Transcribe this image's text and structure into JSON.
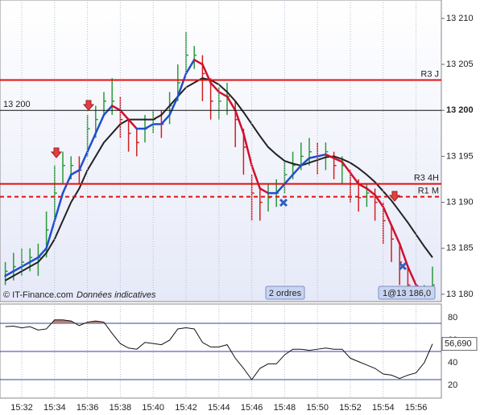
{
  "chart_data": {
    "type": "ohlc",
    "categories": [
      null,
      null,
      "15:32",
      null,
      null,
      null,
      "15:34",
      null,
      null,
      null,
      "15:36",
      null,
      null,
      null,
      "15:38",
      null,
      null,
      null,
      "15:40",
      null,
      null,
      null,
      "15:42",
      null,
      null,
      null,
      "15:44",
      null,
      null,
      null,
      "15:46",
      null,
      null,
      null,
      "15:48",
      null,
      null,
      null,
      "15:50",
      null,
      null,
      null,
      "15:52",
      null,
      null,
      null,
      "15:54",
      null,
      null,
      null,
      "15:56",
      null,
      null
    ],
    "values": [
      13182.5,
      13183,
      13183.5,
      13184,
      13184,
      13187,
      13191,
      13194,
      13194,
      13193.5,
      13198,
      13199,
      13201,
      13201,
      13199,
      13197.5,
      13196.5,
      13198,
      13199,
      13198.5,
      13200.5,
      13203,
      13206,
      13206,
      13204,
      13201,
      13201,
      13201.5,
      13199,
      13196,
      13191,
      13190,
      13190.5,
      13191,
      13193,
      13194,
      13195,
      13195.5,
      13195,
      13195.5,
      13194,
      13194,
      13192,
      13190.5,
      13191,
      13190,
      13188,
      13186,
      13183.5,
      13181,
      13180,
      13180,
      13181
    ],
    "high": [
      13183.5,
      13184.5,
      13185,
      13185,
      13185.5,
      13189,
      13194,
      13195.5,
      13195,
      13195,
      13199.5,
      13200.5,
      13202,
      13203.5,
      13201.5,
      13199,
      13198,
      13199.5,
      13200,
      13200,
      13202,
      13205,
      13208.5,
      13207,
      13206,
      13203.5,
      13202.5,
      13203,
      13201,
      13198,
      13193,
      13191.5,
      13192,
      13192.5,
      13194.5,
      13195.5,
      13196.5,
      13197,
      13196.5,
      13196.5,
      13195.5,
      13195,
      13193.5,
      13192.5,
      13192,
      13191.5,
      13190,
      13187.5,
      13185.5,
      13183,
      13181,
      13181,
      13183
    ],
    "low": [
      13181,
      13181.5,
      13182,
      13182.5,
      13182,
      13184,
      13188,
      13192,
      13192.5,
      13192,
      13195,
      13197,
      13199.5,
      13199.5,
      13197,
      13195.5,
      13195,
      13196.5,
      13197.5,
      13197,
      13198.5,
      13201,
      13204,
      13204.5,
      13201,
      13199,
      13199,
      13199.5,
      13196,
      13193,
      13188,
      13188,
      13189,
      13189.5,
      13191,
      13192.5,
      13193.5,
      13194,
      13193,
      13193.5,
      13192.5,
      13192,
      13190,
      13189,
      13189.5,
      13188,
      13185.5,
      13183.5,
      13181,
      13179.5,
      13179.5,
      13179.5,
      13180
    ],
    "ma_fast": [
      13182,
      13182.5,
      13183,
      13183.5,
      13184,
      13185,
      13188,
      13191,
      13193,
      13193.5,
      13195.5,
      13197.5,
      13199.5,
      13200.5,
      13200,
      13199,
      13198,
      13198,
      13198.5,
      13198.5,
      13199.5,
      13201.5,
      13204,
      13205.5,
      13205,
      13203,
      13202,
      13201.5,
      13200,
      13197.5,
      13194,
      13191.5,
      13191,
      13191,
      13192,
      13193,
      13194,
      13194.8,
      13195,
      13195.2,
      13194.8,
      13194.4,
      13193.2,
      13192,
      13191.5,
      13190.8,
      13189.5,
      13187.5,
      13185.5,
      13183,
      13181,
      13180.3,
      13180.5
    ],
    "ma_slow": [
      13181.5,
      13182,
      13182.5,
      13183,
      13183.5,
      13184.5,
      13186,
      13188,
      13190,
      13191.5,
      13193.5,
      13195,
      13196.5,
      13197.5,
      13198.5,
      13199,
      13199,
      13199,
      13199,
      13199.5,
      13200.5,
      13201.5,
      13202.5,
      13203,
      13203.5,
      13203.3,
      13202.8,
      13202,
      13201,
      13199.8,
      13198.5,
      13197.2,
      13196,
      13195.2,
      13194.5,
      13194.2,
      13194,
      13194.3,
      13194.6,
      13194.9,
      13195,
      13194.7,
      13194.3,
      13193.7,
      13193,
      13192.2,
      13191.2,
      13190.2,
      13189,
      13187.8,
      13186.5,
      13185.2,
      13184
    ],
    "ylim": [
      13179.2,
      13212
    ],
    "yticks": [
      {
        "value": 13180,
        "label": "13 180"
      },
      {
        "value": 13185,
        "label": "13 185"
      },
      {
        "value": 13190,
        "label": "13 190"
      },
      {
        "value": 13195,
        "label": "13 195"
      },
      {
        "value": 13200,
        "label": "13 200"
      },
      {
        "value": 13205,
        "label": "13 205"
      },
      {
        "value": 13210,
        "label": "13 210"
      }
    ],
    "levels": [
      {
        "label": "R3 J",
        "value": 13203.3,
        "color": "#e01010"
      },
      {
        "label": "13 200",
        "value": 13200,
        "color": "#111111"
      },
      {
        "label": "R3 4H",
        "value": 13192,
        "color": "#e01010"
      },
      {
        "label": "R1 M",
        "value": 13190.6,
        "color": "#e01010",
        "dashed": true
      }
    ],
    "annotations": [
      "© IT-Finance.com",
      "Données indicatives",
      "2 ordres",
      "1@13 186,0"
    ],
    "rsi": {
      "values": [
        72,
        72.5,
        71,
        72,
        69,
        70,
        78,
        78,
        77,
        73,
        76,
        77,
        76,
        66,
        57,
        53,
        52,
        58,
        57,
        56,
        60,
        70,
        71,
        70,
        58,
        54,
        54,
        56,
        44,
        35,
        25,
        35,
        39,
        39,
        47,
        52,
        52,
        51,
        52,
        53,
        52,
        52,
        44,
        41,
        38,
        35,
        30,
        29,
        26,
        29,
        31,
        40,
        56.69
      ],
      "ylim": [
        8.6,
        92.1
      ],
      "yticks": [
        20,
        40,
        60,
        80
      ],
      "bands": [
        25,
        50,
        75
      ],
      "last_label": {
        "value": 56.69,
        "label": "56,690"
      }
    }
  }
}
